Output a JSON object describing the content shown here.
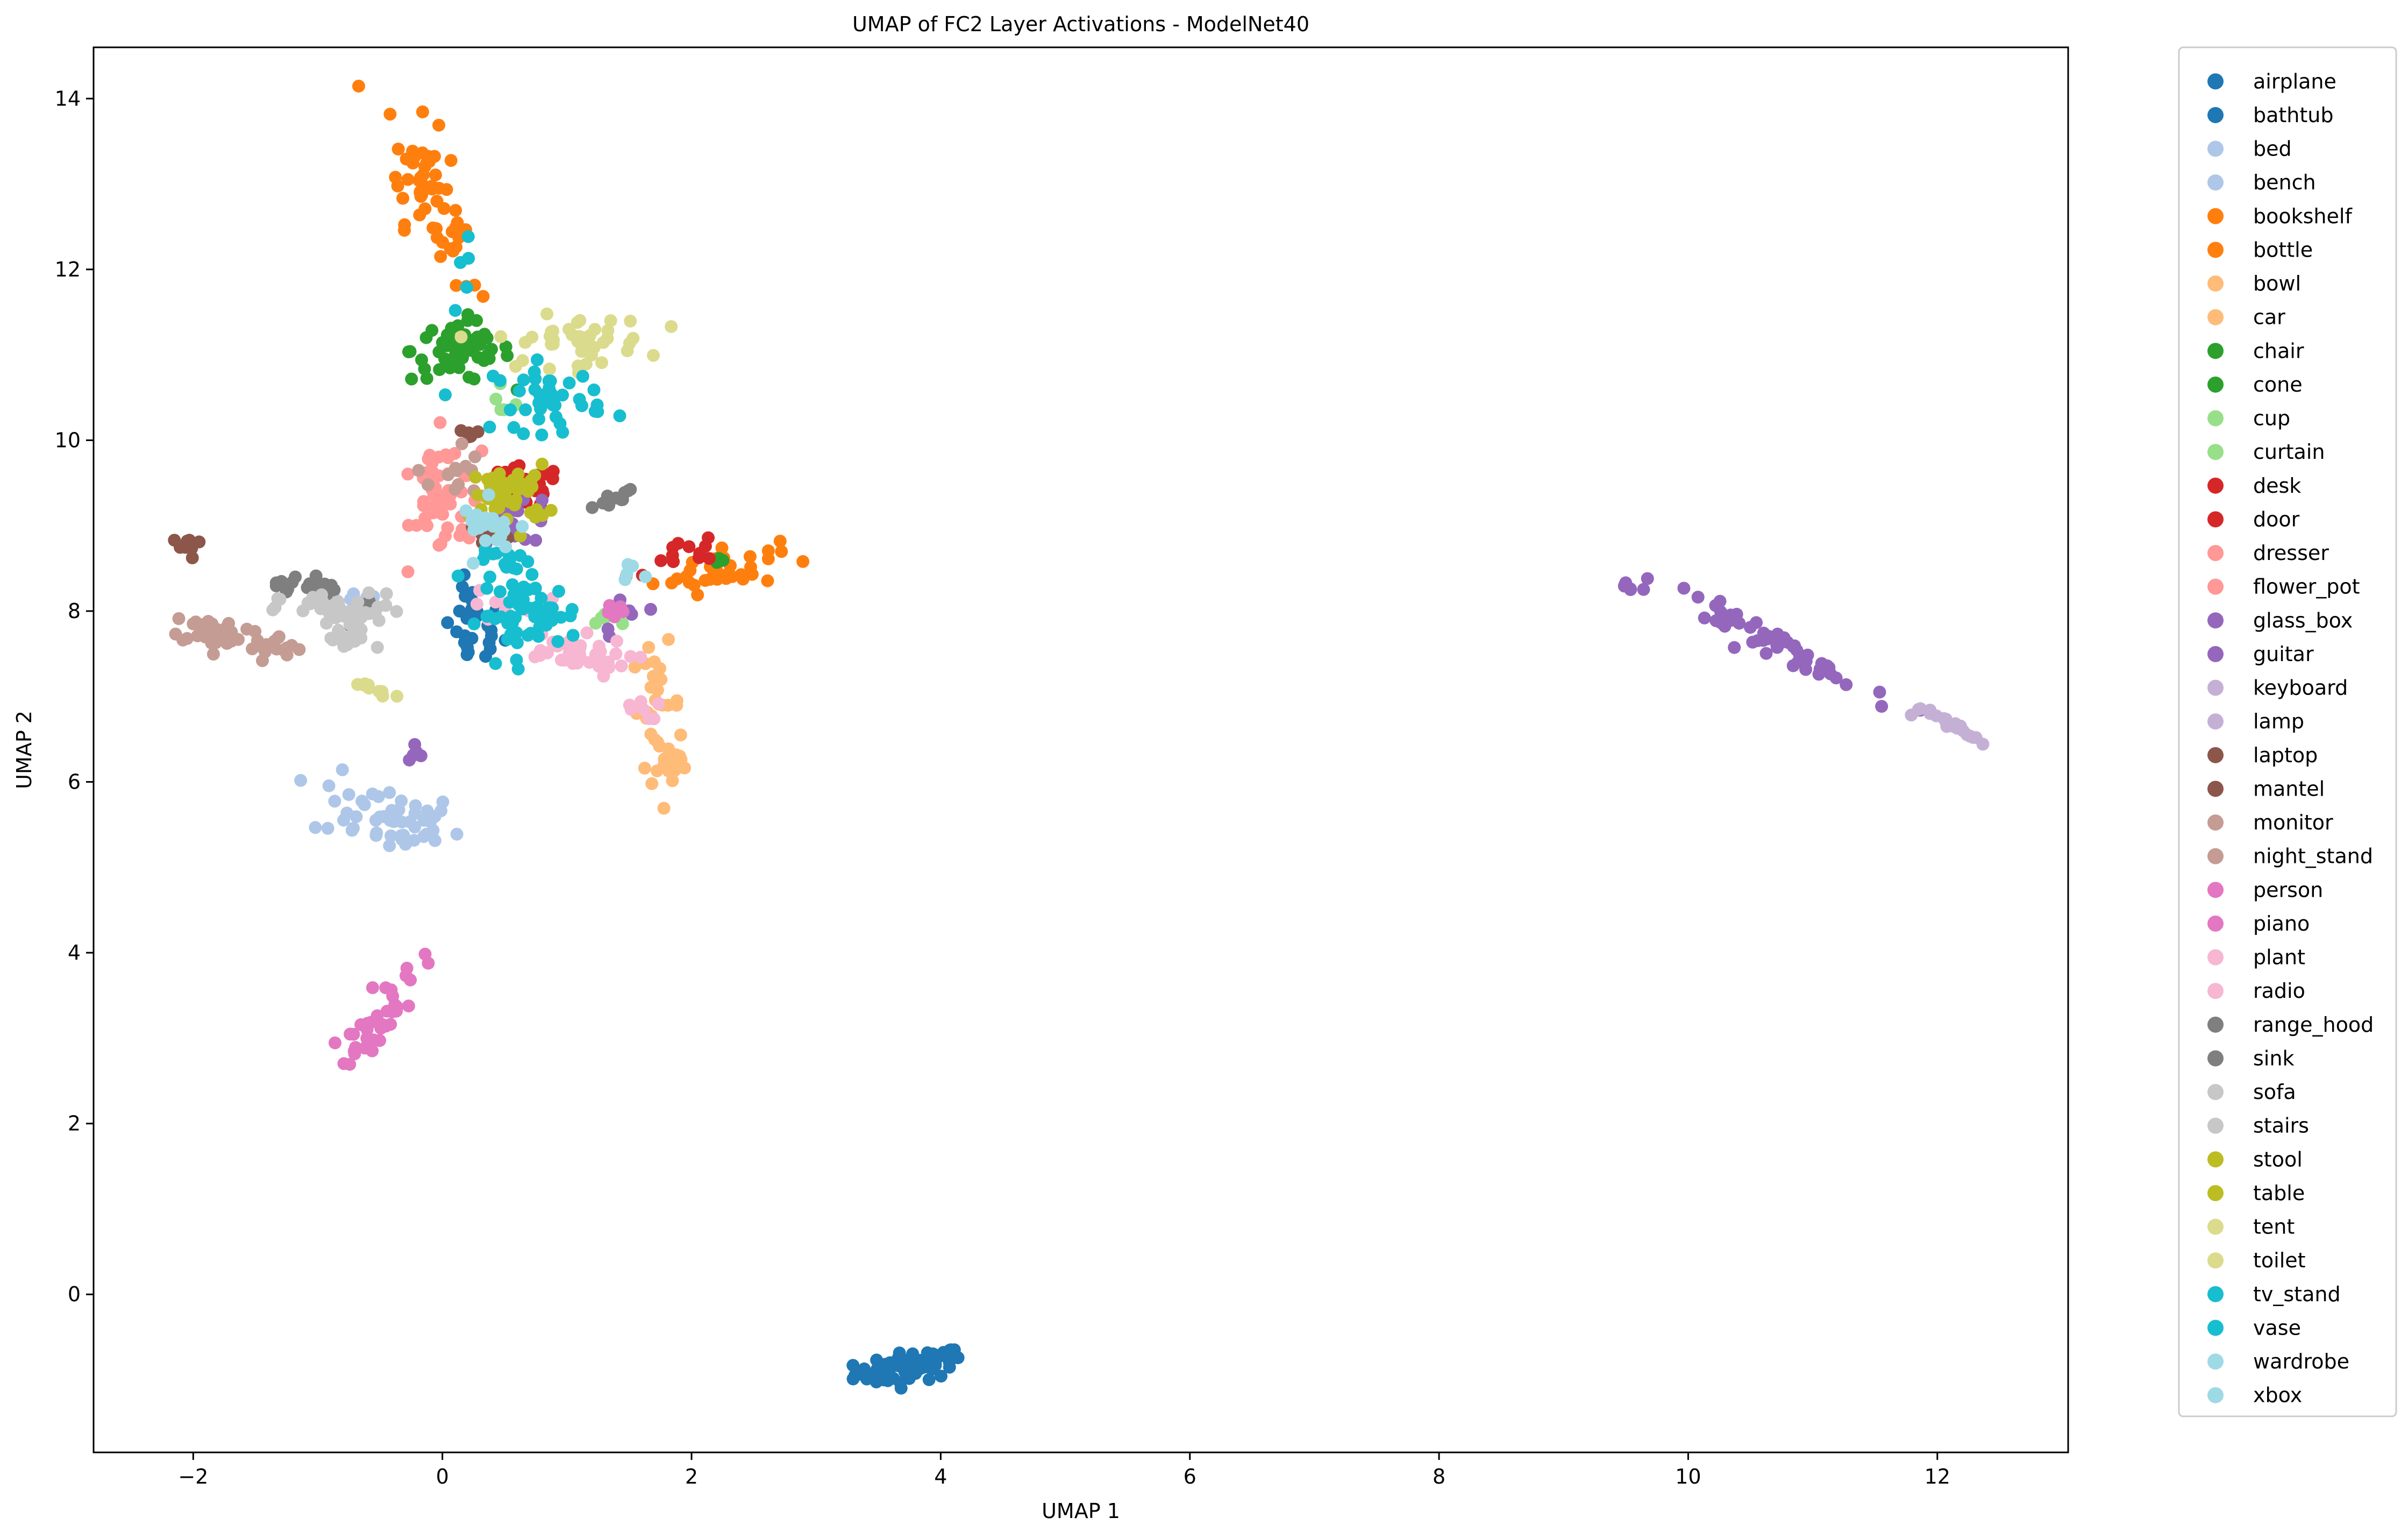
{
  "chart_data": {
    "type": "scatter",
    "title": "UMAP of FC2 Layer Activations - ModelNet40",
    "xlabel": "UMAP 1",
    "ylabel": "UMAP 2",
    "xlim": [
      -2.8,
      13.05
    ],
    "ylim": [
      -1.85,
      14.6
    ],
    "xticks": [
      -2,
      0,
      2,
      4,
      6,
      8,
      10,
      12
    ],
    "yticks": [
      0,
      2,
      4,
      6,
      8,
      10,
      12,
      14
    ],
    "grid": false,
    "legend_position": "outside-right",
    "series": [
      {
        "name": "airplane",
        "color": "#1f77b4",
        "clusters": [
          {
            "cx": 3.75,
            "cy": -0.85,
            "sx": 0.22,
            "sy": 0.1,
            "n": 70,
            "rho": 0.45
          }
        ]
      },
      {
        "name": "bathtub",
        "color": "#1f77b4",
        "clusters": [
          {
            "cx": 0.25,
            "cy": 7.8,
            "sx": 0.12,
            "sy": 0.25,
            "n": 28,
            "rho": 0.0
          }
        ]
      },
      {
        "name": "bed",
        "color": "#aec7e8",
        "clusters": [
          {
            "cx": -0.45,
            "cy": 5.6,
            "sx": 0.3,
            "sy": 0.22,
            "n": 55,
            "rho": -0.4
          }
        ]
      },
      {
        "name": "bench",
        "color": "#aec7e8",
        "clusters": [
          {
            "cx": -0.6,
            "cy": 8.1,
            "sx": 0.15,
            "sy": 0.1,
            "n": 8,
            "rho": 0.0
          }
        ]
      },
      {
        "name": "bookshelf",
        "color": "#ff7f0e",
        "clusters": [
          {
            "cx": -0.15,
            "cy": 13.05,
            "sx": 0.15,
            "sy": 0.4,
            "n": 50,
            "rho": -0.5
          },
          {
            "cx": 2.2,
            "cy": 8.5,
            "sx": 0.25,
            "sy": 0.14,
            "n": 40,
            "rho": 0.3
          }
        ]
      },
      {
        "name": "bottle",
        "color": "#ff7f0e",
        "clusters": [
          {
            "cx": 0.15,
            "cy": 12.0,
            "sx": 0.1,
            "sy": 0.35,
            "n": 10,
            "rho": -0.8
          }
        ]
      },
      {
        "name": "bowl",
        "color": "#ffbb78",
        "clusters": [
          {
            "cx": 1.85,
            "cy": 6.2,
            "sx": 0.07,
            "sy": 0.15,
            "n": 15,
            "rho": 0.0
          }
        ]
      },
      {
        "name": "car",
        "color": "#ffbb78",
        "clusters": [
          {
            "cx": 1.72,
            "cy": 6.9,
            "sx": 0.1,
            "sy": 0.35,
            "n": 30,
            "rho": 0.0
          }
        ]
      },
      {
        "name": "chair",
        "color": "#2ca02c",
        "clusters": [
          {
            "cx": 0.15,
            "cy": 11.05,
            "sx": 0.2,
            "sy": 0.18,
            "n": 55,
            "rho": 0.0
          }
        ]
      },
      {
        "name": "cone",
        "color": "#2ca02c",
        "clusters": [
          {
            "cx": 2.25,
            "cy": 8.6,
            "sx": 0.05,
            "sy": 0.03,
            "n": 3,
            "rho": 0.0
          }
        ]
      },
      {
        "name": "cup",
        "color": "#98df8a",
        "clusters": [
          {
            "cx": 0.5,
            "cy": 10.4,
            "sx": 0.08,
            "sy": 0.08,
            "n": 5,
            "rho": 0.0
          }
        ]
      },
      {
        "name": "curtain",
        "color": "#98df8a",
        "clusters": [
          {
            "cx": 1.35,
            "cy": 7.9,
            "sx": 0.1,
            "sy": 0.08,
            "n": 6,
            "rho": 0.0
          }
        ]
      },
      {
        "name": "desk",
        "color": "#d62728",
        "clusters": [
          {
            "cx": 0.65,
            "cy": 9.45,
            "sx": 0.15,
            "sy": 0.12,
            "n": 35,
            "rho": 0.0
          }
        ]
      },
      {
        "name": "door",
        "color": "#d62728",
        "clusters": [
          {
            "cx": 1.95,
            "cy": 8.65,
            "sx": 0.13,
            "sy": 0.1,
            "n": 12,
            "rho": 0.6
          }
        ]
      },
      {
        "name": "dresser",
        "color": "#ff9896",
        "clusters": [
          {
            "cx": -0.05,
            "cy": 9.35,
            "sx": 0.1,
            "sy": 0.35,
            "n": 35,
            "rho": 0.0
          }
        ]
      },
      {
        "name": "flower_pot",
        "color": "#ff9896",
        "clusters": [
          {
            "cx": 0.15,
            "cy": 9.3,
            "sx": 0.15,
            "sy": 0.3,
            "n": 20,
            "rho": 0.0
          }
        ]
      },
      {
        "name": "glass_box",
        "color": "#9467bd",
        "clusters": [
          {
            "cx": 0.6,
            "cy": 9.1,
            "sx": 0.15,
            "sy": 0.15,
            "n": 25,
            "rho": 0.0
          },
          {
            "cx": 1.5,
            "cy": 7.95,
            "sx": 0.12,
            "sy": 0.12,
            "n": 8,
            "rho": 0.0
          },
          {
            "cx": -0.25,
            "cy": 6.35,
            "sx": 0.06,
            "sy": 0.08,
            "n": 6,
            "rho": 0.0
          }
        ]
      },
      {
        "name": "guitar",
        "color": "#9467bd",
        "clusters": [
          {
            "cx": 10.6,
            "cy": 7.7,
            "sx": 0.4,
            "sy": 0.3,
            "n": 55,
            "rho": -0.97
          },
          {
            "cx": 9.5,
            "cy": 8.3,
            "sx": 0.07,
            "sy": 0.05,
            "n": 6,
            "rho": -0.9
          }
        ]
      },
      {
        "name": "keyboard",
        "color": "#c5b0d5",
        "clusters": [
          {
            "cx": 12.12,
            "cy": 6.65,
            "sx": 0.13,
            "sy": 0.1,
            "n": 20,
            "rho": -0.95
          }
        ]
      },
      {
        "name": "lamp",
        "color": "#c5b0d5",
        "clusters": [
          {
            "cx": 12.0,
            "cy": 6.8,
            "sx": 0.1,
            "sy": 0.05,
            "n": 4,
            "rho": 0.0
          }
        ]
      },
      {
        "name": "laptop",
        "color": "#8c564b",
        "clusters": [
          {
            "cx": -2.05,
            "cy": 8.75,
            "sx": 0.06,
            "sy": 0.07,
            "n": 10,
            "rho": 0.0
          }
        ]
      },
      {
        "name": "mantel",
        "color": "#8c564b",
        "clusters": [
          {
            "cx": 0.35,
            "cy": 8.9,
            "sx": 0.1,
            "sy": 0.1,
            "n": 10,
            "rho": 0.0
          },
          {
            "cx": 0.2,
            "cy": 10.1,
            "sx": 0.05,
            "sy": 0.1,
            "n": 5,
            "rho": 0.0
          }
        ]
      },
      {
        "name": "monitor",
        "color": "#c49c94",
        "clusters": [
          {
            "cx": -1.8,
            "cy": 7.75,
            "sx": 0.2,
            "sy": 0.1,
            "n": 40,
            "rho": -0.4
          }
        ]
      },
      {
        "name": "night_stand",
        "color": "#c49c94",
        "clusters": [
          {
            "cx": -1.3,
            "cy": 7.55,
            "sx": 0.12,
            "sy": 0.08,
            "n": 15,
            "rho": 0.0
          },
          {
            "cx": 0.1,
            "cy": 9.6,
            "sx": 0.1,
            "sy": 0.2,
            "n": 12,
            "rho": 0.0
          }
        ]
      },
      {
        "name": "person",
        "color": "#e377c2",
        "clusters": [
          {
            "cx": -0.4,
            "cy": 3.5,
            "sx": 0.12,
            "sy": 0.25,
            "n": 20,
            "rho": 0.6
          }
        ]
      },
      {
        "name": "piano",
        "color": "#e377c2",
        "clusters": [
          {
            "cx": -0.6,
            "cy": 3.05,
            "sx": 0.1,
            "sy": 0.15,
            "n": 20,
            "rho": 0.6
          },
          {
            "cx": 1.35,
            "cy": 8.0,
            "sx": 0.08,
            "sy": 0.06,
            "n": 6,
            "rho": 0.0
          }
        ]
      },
      {
        "name": "plant",
        "color": "#f7b6d2",
        "clusters": [
          {
            "cx": 1.0,
            "cy": 7.5,
            "sx": 0.25,
            "sy": 0.12,
            "n": 40,
            "rho": -0.3
          }
        ]
      },
      {
        "name": "radio",
        "color": "#f7b6d2",
        "clusters": [
          {
            "cx": 1.55,
            "cy": 6.85,
            "sx": 0.1,
            "sy": 0.06,
            "n": 8,
            "rho": 0.0
          },
          {
            "cx": 0.55,
            "cy": 8.05,
            "sx": 0.15,
            "sy": 0.1,
            "n": 10,
            "rho": 0.0
          }
        ]
      },
      {
        "name": "range_hood",
        "color": "#7f7f7f",
        "clusters": [
          {
            "cx": 1.35,
            "cy": 9.3,
            "sx": 0.12,
            "sy": 0.08,
            "n": 10,
            "rho": 0.9
          }
        ]
      },
      {
        "name": "sink",
        "color": "#7f7f7f",
        "clusters": [
          {
            "cx": -1.1,
            "cy": 8.3,
            "sx": 0.12,
            "sy": 0.08,
            "n": 20,
            "rho": 0.0
          },
          {
            "cx": -0.7,
            "cy": 8.0,
            "sx": 0.08,
            "sy": 0.08,
            "n": 8,
            "rho": 0.0
          }
        ]
      },
      {
        "name": "sofa",
        "color": "#c7c7c7",
        "clusters": [
          {
            "cx": -0.8,
            "cy": 8.0,
            "sx": 0.25,
            "sy": 0.1,
            "n": 45,
            "rho": 0.0
          }
        ]
      },
      {
        "name": "stairs",
        "color": "#c7c7c7",
        "clusters": [
          {
            "cx": -0.75,
            "cy": 7.65,
            "sx": 0.1,
            "sy": 0.08,
            "n": 15,
            "rho": 0.0
          }
        ]
      },
      {
        "name": "stool",
        "color": "#bcbd22",
        "clusters": [
          {
            "cx": 0.45,
            "cy": 9.45,
            "sx": 0.08,
            "sy": 0.15,
            "n": 15,
            "rho": 0.0
          }
        ]
      },
      {
        "name": "table",
        "color": "#bcbd22",
        "clusters": [
          {
            "cx": 0.55,
            "cy": 9.35,
            "sx": 0.15,
            "sy": 0.18,
            "n": 35,
            "rho": 0.0
          }
        ]
      },
      {
        "name": "tent",
        "color": "#dbdb8d",
        "clusters": [
          {
            "cx": 1.05,
            "cy": 11.15,
            "sx": 0.3,
            "sy": 0.15,
            "n": 45,
            "rho": 0.0
          }
        ]
      },
      {
        "name": "toilet",
        "color": "#dbdb8d",
        "clusters": [
          {
            "cx": -0.55,
            "cy": 7.1,
            "sx": 0.2,
            "sy": 0.08,
            "n": 10,
            "rho": -0.9
          }
        ]
      },
      {
        "name": "tv_stand",
        "color": "#17becf",
        "clusters": [
          {
            "cx": 0.7,
            "cy": 7.95,
            "sx": 0.2,
            "sy": 0.2,
            "n": 55,
            "rho": 0.0
          },
          {
            "cx": 0.55,
            "cy": 8.55,
            "sx": 0.15,
            "sy": 0.08,
            "n": 15,
            "rho": 0.0
          }
        ]
      },
      {
        "name": "vase",
        "color": "#17becf",
        "clusters": [
          {
            "cx": 0.85,
            "cy": 10.5,
            "sx": 0.22,
            "sy": 0.2,
            "n": 40,
            "rho": 0.0
          },
          {
            "cx": 0.15,
            "cy": 11.6,
            "sx": 0.05,
            "sy": 0.5,
            "n": 5,
            "rho": 0.0
          }
        ]
      },
      {
        "name": "wardrobe",
        "color": "#9edae5",
        "clusters": [
          {
            "cx": 1.55,
            "cy": 8.45,
            "sx": 0.1,
            "sy": 0.05,
            "n": 5,
            "rho": 0.0
          }
        ]
      },
      {
        "name": "xbox",
        "color": "#9edae5",
        "clusters": [
          {
            "cx": 0.4,
            "cy": 9.0,
            "sx": 0.12,
            "sy": 0.15,
            "n": 20,
            "rho": 0.0
          }
        ]
      }
    ]
  }
}
